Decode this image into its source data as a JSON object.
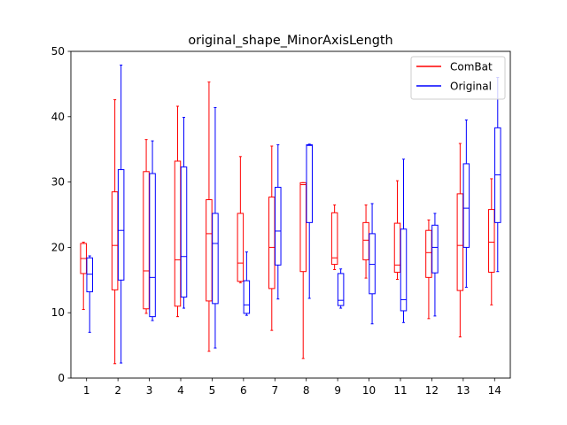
{
  "chart_data": {
    "type": "boxplot",
    "title": "original_shape_MinorAxisLength",
    "xlabel": "",
    "ylabel": "",
    "categories": [
      "1",
      "2",
      "3",
      "4",
      "5",
      "6",
      "7",
      "8",
      "9",
      "10",
      "11",
      "12",
      "13",
      "14"
    ],
    "ylim": [
      0,
      50
    ],
    "yticks": [
      "0",
      "10",
      "20",
      "30",
      "40",
      "50"
    ],
    "grid": false,
    "legend_position": "top-right",
    "series": [
      {
        "name": "ComBat",
        "color": "#ff0000",
        "boxes": [
          {
            "min": 10.5,
            "q1": 16.0,
            "median": 18.3,
            "q3": 20.6,
            "max": 20.8
          },
          {
            "min": 2.2,
            "q1": 13.5,
            "median": 20.3,
            "q3": 28.5,
            "max": 42.6
          },
          {
            "min": 9.9,
            "q1": 10.6,
            "median": 16.4,
            "q3": 31.6,
            "max": 36.5
          },
          {
            "min": 9.4,
            "q1": 11.0,
            "median": 18.1,
            "q3": 33.2,
            "max": 41.6
          },
          {
            "min": 4.1,
            "q1": 11.8,
            "median": 22.1,
            "q3": 27.3,
            "max": 45.3
          },
          {
            "min": 14.6,
            "q1": 14.8,
            "median": 17.6,
            "q3": 25.2,
            "max": 33.9
          },
          {
            "min": 7.3,
            "q1": 13.7,
            "median": 20.0,
            "q3": 27.7,
            "max": 35.5
          },
          {
            "min": 3.0,
            "q1": 16.3,
            "median": 29.6,
            "q3": 29.9,
            "max": 29.9
          },
          {
            "min": 16.6,
            "q1": 17.4,
            "median": 18.4,
            "q3": 25.3,
            "max": 26.5
          },
          {
            "min": 15.3,
            "q1": 18.1,
            "median": 21.1,
            "q3": 23.8,
            "max": 26.5
          },
          {
            "min": 15.1,
            "q1": 16.2,
            "median": 17.3,
            "q3": 23.7,
            "max": 30.2
          },
          {
            "min": 9.1,
            "q1": 15.4,
            "median": 19.2,
            "q3": 22.6,
            "max": 24.2
          },
          {
            "min": 6.3,
            "q1": 13.4,
            "median": 20.3,
            "q3": 28.2,
            "max": 35.9
          },
          {
            "min": 11.2,
            "q1": 16.2,
            "median": 20.8,
            "q3": 25.8,
            "max": 30.5
          }
        ]
      },
      {
        "name": "Original",
        "color": "#0000ff",
        "boxes": [
          {
            "min": 7.0,
            "q1": 13.2,
            "median": 15.9,
            "q3": 18.4,
            "max": 18.7
          },
          {
            "min": 2.3,
            "q1": 15.0,
            "median": 22.6,
            "q3": 31.9,
            "max": 47.9
          },
          {
            "min": 8.8,
            "q1": 9.4,
            "median": 15.4,
            "q3": 31.3,
            "max": 36.3
          },
          {
            "min": 10.7,
            "q1": 12.4,
            "median": 18.6,
            "q3": 32.3,
            "max": 39.9
          },
          {
            "min": 4.6,
            "q1": 11.4,
            "median": 20.6,
            "q3": 25.2,
            "max": 41.4
          },
          {
            "min": 9.6,
            "q1": 9.9,
            "median": 11.2,
            "q3": 14.9,
            "max": 19.3
          },
          {
            "min": 12.1,
            "q1": 17.3,
            "median": 22.5,
            "q3": 29.2,
            "max": 35.7
          },
          {
            "min": 12.2,
            "q1": 23.8,
            "median": 35.6,
            "q3": 35.7,
            "max": 35.8
          },
          {
            "min": 10.7,
            "q1": 11.1,
            "median": 11.9,
            "q3": 16.0,
            "max": 16.7
          },
          {
            "min": 8.3,
            "q1": 12.9,
            "median": 17.4,
            "q3": 22.1,
            "max": 26.7
          },
          {
            "min": 8.5,
            "q1": 10.3,
            "median": 12.0,
            "q3": 22.8,
            "max": 33.5
          },
          {
            "min": 9.5,
            "q1": 16.1,
            "median": 20.0,
            "q3": 23.4,
            "max": 25.2
          },
          {
            "min": 13.9,
            "q1": 20.0,
            "median": 26.0,
            "q3": 32.8,
            "max": 39.5
          },
          {
            "min": 16.3,
            "q1": 23.8,
            "median": 31.1,
            "q3": 38.3,
            "max": 46.0
          }
        ]
      }
    ]
  }
}
